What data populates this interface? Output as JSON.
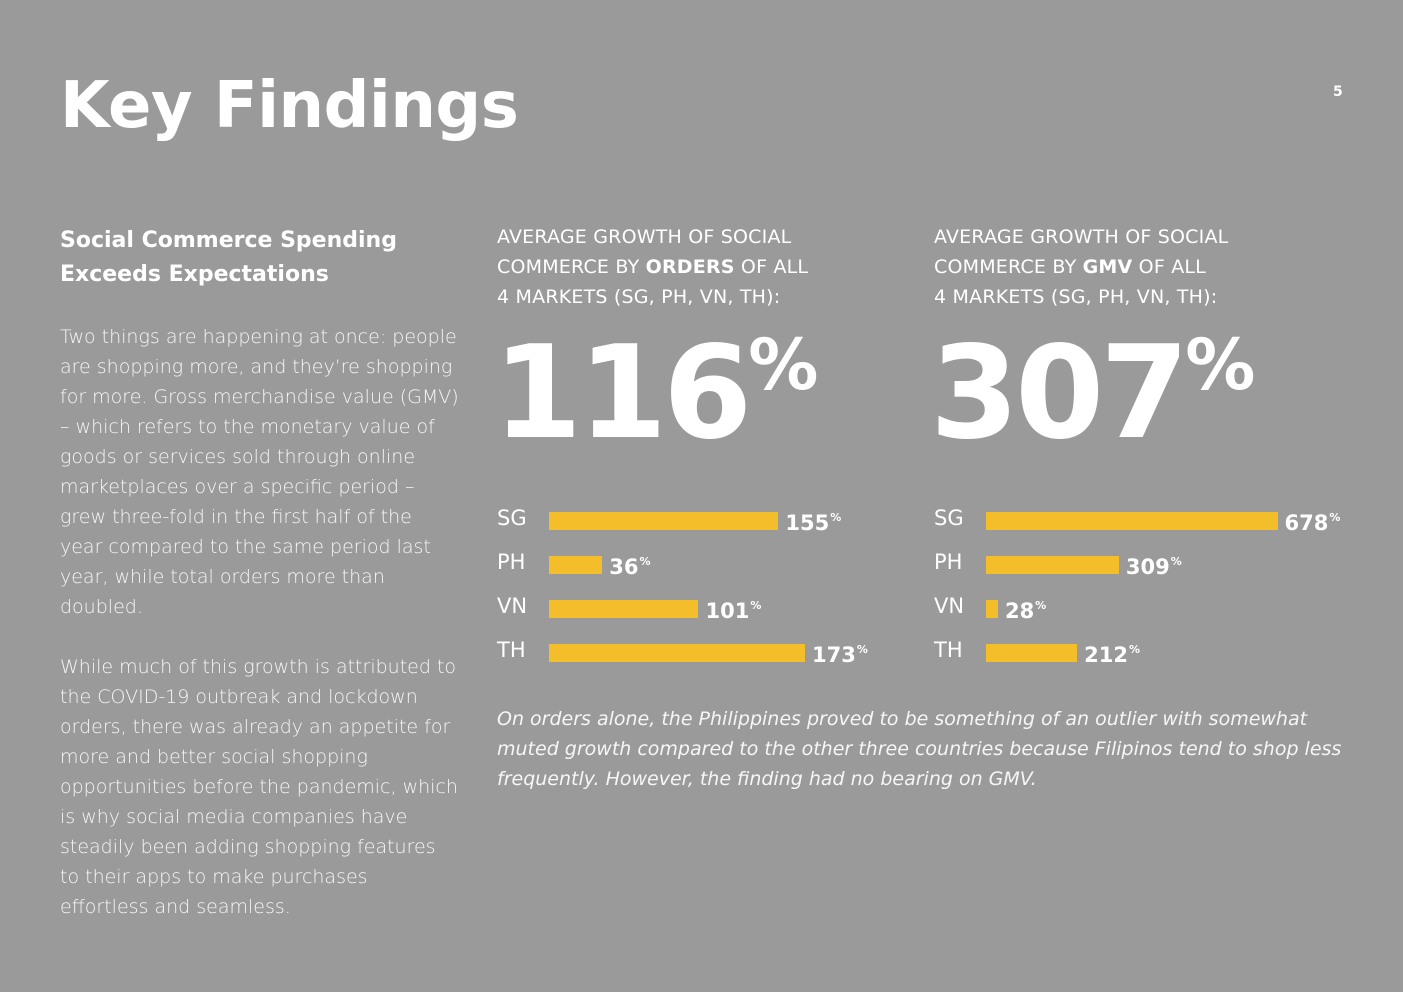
{
  "page": {
    "title": "Key Findings",
    "page_number": "5"
  },
  "left": {
    "heading_line1": "Social Commerce Spending",
    "heading_line2": "Exceeds Expectations",
    "para1": "Two things are happening at once: people are shopping more, and they’re shopping for more. Gross merchandise value (GMV) – which refers to the monetary value of goods or services sold through online marketplaces over a specific period – grew three-fold in the first half of the year compared to the same period last year, while total orders more than doubled.",
    "para2": "While much of this growth is attributed to the COVID-19 outbreak and lockdown orders, there was already an appetite for more and better social shopping opportunities before the pandemic, which is why social media companies have steadily been adding shopping features to their apps to make purchases effortless and seamless."
  },
  "orders": {
    "label_line1": "AVERAGE GROWTH OF SOCIAL",
    "label_line2_pre": "COMMERCE BY ",
    "label_line2_bold": "ORDERS",
    "label_line2_post": " OF ALL",
    "label_line3": "4 MARKETS (SG, PH, VN, TH):",
    "big_value": "116",
    "big_unit": "%"
  },
  "gmv": {
    "label_line1": "AVERAGE GROWTH OF SOCIAL",
    "label_line2_pre": "COMMERCE BY ",
    "label_line2_bold": "GMV",
    "label_line2_post": " OF ALL",
    "label_line3": "4 MARKETS (SG, PH, VN, TH):",
    "big_value": "307",
    "big_unit": "%"
  },
  "chart_data": [
    {
      "type": "bar",
      "categories": [
        "SG",
        "PH",
        "VN",
        "TH"
      ],
      "values": [
        155,
        36,
        101,
        173
      ],
      "value_labels": [
        "155",
        "36",
        "101",
        "173"
      ],
      "unit": "%",
      "color": "#f4bd2a",
      "orientation": "horizontal"
    },
    {
      "type": "bar",
      "categories": [
        "SG",
        "PH",
        "VN",
        "TH"
      ],
      "values": [
        678,
        309,
        28,
        212
      ],
      "value_labels": [
        "678",
        "309",
        "28",
        "212"
      ],
      "unit": "%",
      "color": "#f4bd2a",
      "orientation": "horizontal"
    }
  ],
  "note": "On orders alone, the Philippines proved to be something of an outlier with somewhat muted growth compared to the other three countries because Filipinos tend to shop less frequently. However, the finding had no bearing on GMV."
}
